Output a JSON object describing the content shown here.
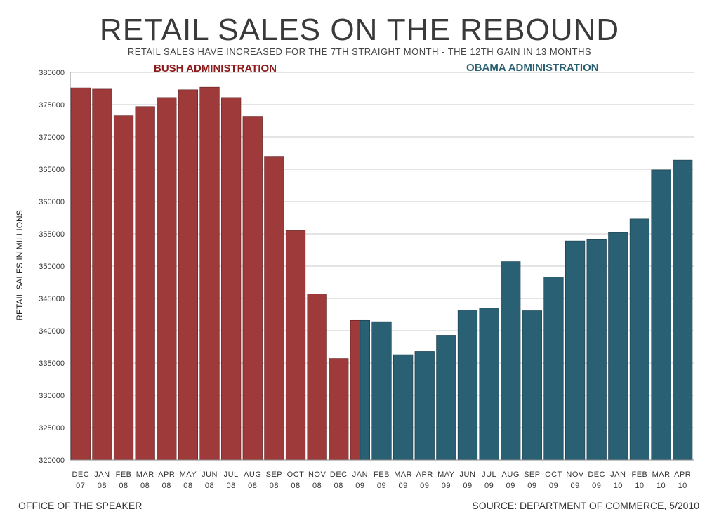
{
  "chart_data": {
    "type": "bar",
    "title": "RETAIL SALES ON THE REBOUND",
    "subtitle": "RETAIL SALES HAVE INCREASED FOR THE 7TH STRAIGHT MONTH - THE 12TH GAIN IN 13 MONTHS",
    "ylabel": "RETAIL SALES IN MILLIONS",
    "xlabel": "",
    "ylim": [
      320000,
      380000
    ],
    "yticks": [
      "320000",
      "325000",
      "330000",
      "335000",
      "340000",
      "345000",
      "350000",
      "355000",
      "360000",
      "365000",
      "370000",
      "375000",
      "380000"
    ],
    "grid": true,
    "categories": [
      [
        "DEC",
        "07"
      ],
      [
        "JAN",
        "08"
      ],
      [
        "FEB",
        "08"
      ],
      [
        "MAR",
        "08"
      ],
      [
        "APR",
        "08"
      ],
      [
        "MAY",
        "08"
      ],
      [
        "JUN",
        "08"
      ],
      [
        "JUL",
        "08"
      ],
      [
        "AUG",
        "08"
      ],
      [
        "SEP",
        "08"
      ],
      [
        "OCT",
        "08"
      ],
      [
        "NOV",
        "08"
      ],
      [
        "DEC",
        "08"
      ],
      [
        "JAN",
        "09"
      ],
      [
        "FEB",
        "09"
      ],
      [
        "MAR",
        "09"
      ],
      [
        "APR",
        "09"
      ],
      [
        "MAY",
        "09"
      ],
      [
        "JUN",
        "09"
      ],
      [
        "JUL",
        "09"
      ],
      [
        "AUG",
        "09"
      ],
      [
        "SEP",
        "09"
      ],
      [
        "OCT",
        "09"
      ],
      [
        "NOV",
        "09"
      ],
      [
        "DEC",
        "09"
      ],
      [
        "JAN",
        "10"
      ],
      [
        "FEB",
        "10"
      ],
      [
        "MAR",
        "10"
      ],
      [
        "APR",
        "10"
      ]
    ],
    "values": [
      377600,
      377400,
      373300,
      374700,
      376100,
      377300,
      377700,
      376100,
      373200,
      367000,
      355500,
      345700,
      335700,
      341600,
      341400,
      336300,
      336800,
      339300,
      343200,
      343500,
      350700,
      343100,
      348300,
      353900,
      354100,
      355200,
      357300,
      364900,
      366400
    ],
    "series": [
      {
        "name": "BUSH ADMINISTRATION",
        "color": "#9e3a3a",
        "from_index": 0,
        "to_index": 13
      },
      {
        "name": "OBAMA ADMINISTRATION",
        "color": "#2a6073",
        "from_index": 13,
        "to_index": 28
      }
    ],
    "annotations": {
      "bush_label": "BUSH ADMINISTRATION",
      "obama_label": "OBAMA ADMINISTRATION",
      "bush_color": "#8b1a1a",
      "obama_color": "#2a5f70"
    }
  },
  "footer": {
    "left": "OFFICE OF THE SPEAKER",
    "right": "SOURCE: DEPARTMENT OF COMMERCE, 5/2010"
  }
}
